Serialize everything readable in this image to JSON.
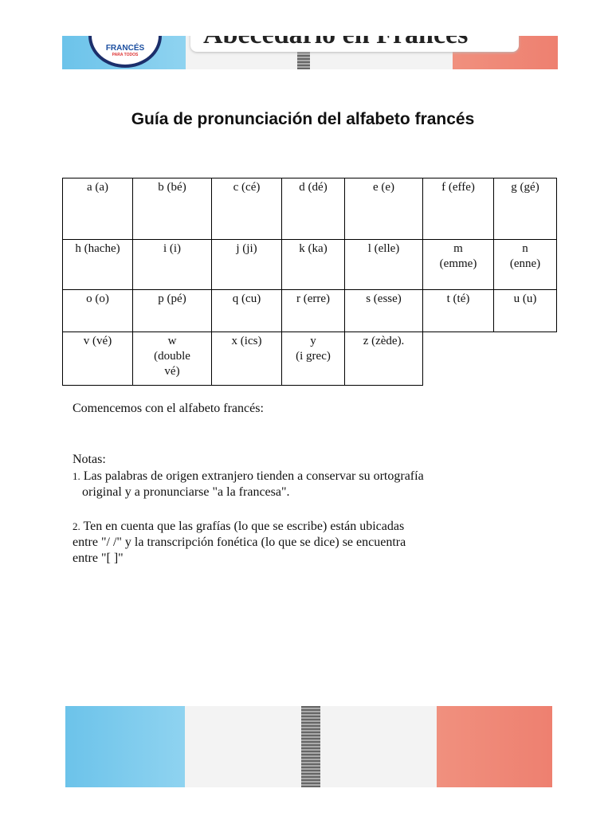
{
  "header": {
    "logo_lines": [
      "FRANCÉS",
      "PARA TODOS"
    ],
    "title": "Abecedario en Francés"
  },
  "title": "Guía de pronunciación del alfabeto francés",
  "table": {
    "rows": [
      [
        "a (a)",
        "b (bé)",
        "c (cé)",
        "d (dé)",
        "e (e)",
        "f (effe)",
        "g (gé)"
      ],
      [
        "h (hache)",
        "i (i)",
        "j (ji)",
        "k (ka)",
        "l (elle)",
        "m\n(emme)",
        "n\n(enne)"
      ],
      [
        "o (o)",
        "p (pé)",
        "q (cu)",
        "r (erre)",
        "s (esse)",
        "t (té)",
        "u (u)"
      ],
      [
        "v (vé)",
        "w\n(double\nvé)",
        "x (ics)",
        "y\n(i grec)",
        "z (zède)."
      ]
    ]
  },
  "intro": "Comencemos con el alfabeto francés:",
  "notes": {
    "label": "Notas:",
    "items": [
      {
        "number": "1.",
        "text": "Las palabras de origen extranjero tienden a conservar su ortografía\n   original y a pronunciarse \"a la francesa\"."
      },
      {
        "number": "2.",
        "text": "Ten en cuenta que las grafías (lo que se escribe) están ubicadas\nentre \"/ /\" y la transcripción fonética (lo que se dice) se encuentra\nentre \"[ ]\""
      }
    ]
  }
}
